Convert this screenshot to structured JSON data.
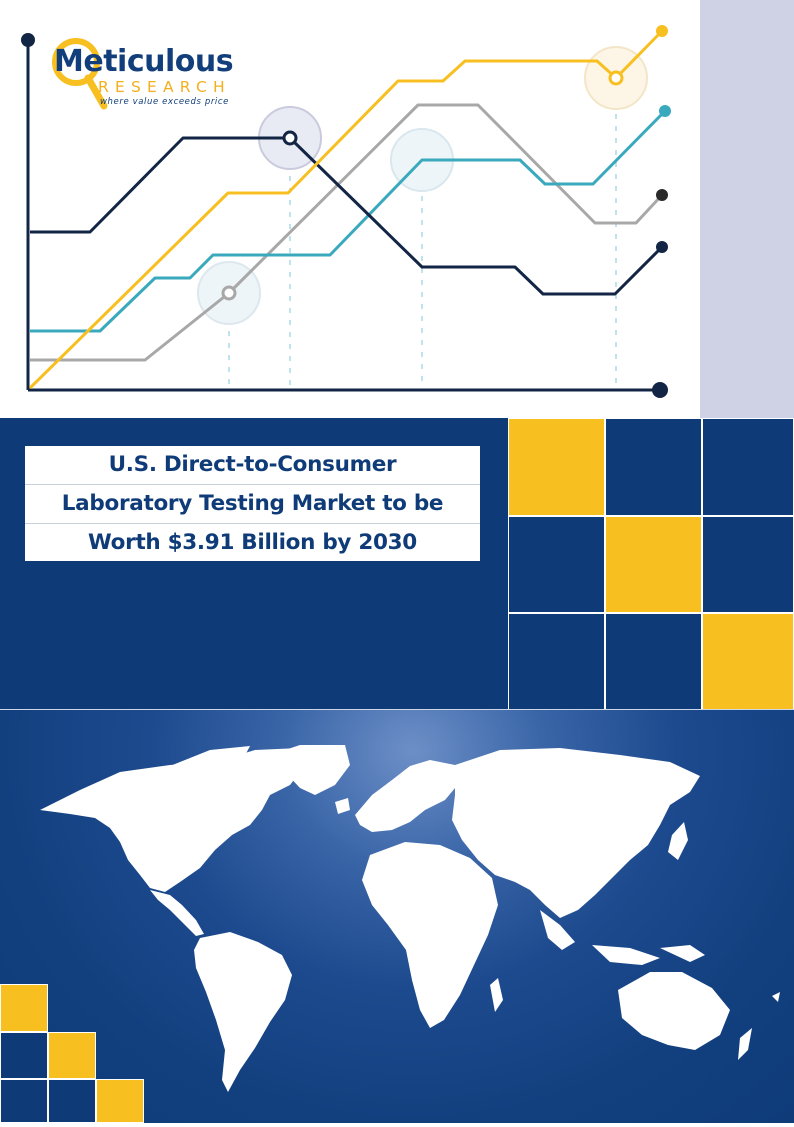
{
  "logo": {
    "name": "Meticulous",
    "sub": "RESEARCH",
    "tagline": "where value exceeds price"
  },
  "title": {
    "lines": [
      "U.S. Direct-to-Consumer",
      "Laboratory Testing Market to be",
      "Worth $3.91 Billion by 2030"
    ]
  },
  "colors": {
    "navy": "#0e3a78",
    "yellow": "#f8bf20",
    "teal": "#3aa9bd",
    "gray": "#a8a8a8",
    "dark": "#132544",
    "lavender": "#cfd1e5"
  },
  "decor": {
    "chart_icon": "line-chart-illustration",
    "map_icon": "world-map-illustration"
  }
}
